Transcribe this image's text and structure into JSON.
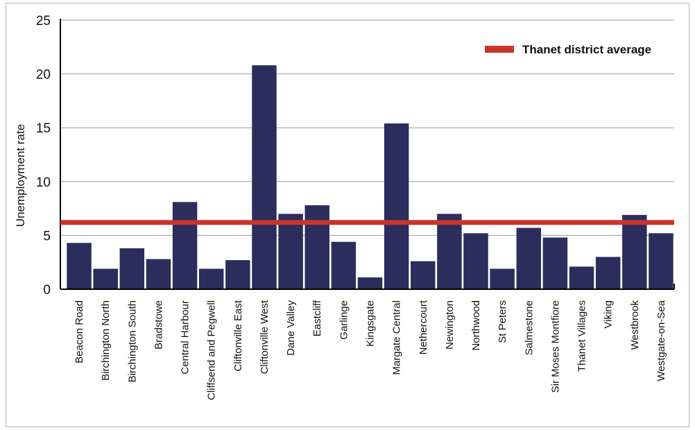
{
  "chart_data": {
    "type": "bar",
    "ylabel": "Unemployment rate",
    "ylim": [
      0,
      25
    ],
    "yticks": [
      0,
      5,
      10,
      15,
      20,
      25
    ],
    "grid": true,
    "legend_position": "top-right",
    "bar_color": "#2b2d5c",
    "reference_line": {
      "name": "Thanet district average",
      "value": 6.2,
      "color": "#c8352b"
    },
    "categories": [
      "Beacon Road",
      "Birchington North",
      "Birchington South",
      "Bradstowe",
      "Central Harbour",
      "Cliffsend and Pegwell",
      "Cliftonville East",
      "Cliftonville West",
      "Dane Valley",
      "Eastcliff",
      "Garlinge",
      "Kingsgate",
      "Margate Central",
      "Nethercourt",
      "Newington",
      "Northwood",
      "St Peters",
      "Salmestone",
      "Sir Moses Montfiore",
      "Thanet Villages",
      "Viking",
      "Westbrook",
      "Westgate-on-Sea"
    ],
    "values": [
      4.3,
      1.9,
      3.8,
      2.8,
      8.1,
      1.9,
      2.7,
      20.8,
      7.0,
      7.8,
      4.4,
      1.1,
      15.4,
      2.6,
      7.0,
      5.2,
      1.9,
      5.7,
      4.8,
      2.1,
      3.0,
      6.9,
      5.2
    ]
  }
}
